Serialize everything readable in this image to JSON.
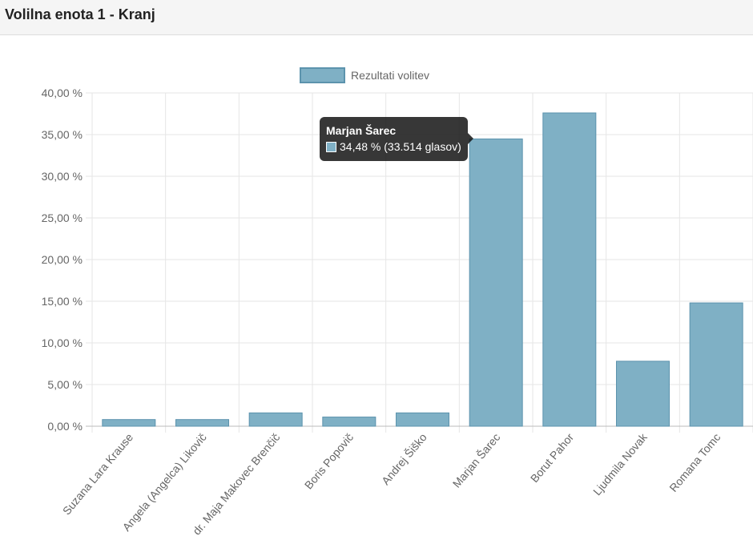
{
  "header": {
    "title": "Volilna enota 1 - Kranj"
  },
  "colors": {
    "bar_fill": "#7fb0c5",
    "bar_border": "#5c93ad",
    "grid": "#e6e6e6",
    "axis_text": "#666666"
  },
  "tooltip": {
    "title": "Marjan Šarec",
    "value": "34,48 % (33.514 glasov)"
  },
  "chart_data": {
    "type": "bar",
    "categories": [
      "Suzana Lara Krause",
      "Angela (Angelca) Likovič",
      "dr. Maja Makovec Brenčič",
      "Boris Popovič",
      "Andrej Šiško",
      "Marjan Šarec",
      "Borut Pahor",
      "Ljudmila Novak",
      "Romana Tomc"
    ],
    "series": [
      {
        "name": "Rezultati volitev",
        "values": [
          0.8,
          0.8,
          1.6,
          1.1,
          1.6,
          34.48,
          37.6,
          7.8,
          14.8
        ]
      }
    ],
    "yticks": [
      "0,00 %",
      "5,00 %",
      "10,00 %",
      "15,00 %",
      "20,00 %",
      "25,00 %",
      "30,00 %",
      "35,00 %",
      "40,00 %"
    ],
    "ylim": [
      0,
      40
    ],
    "ystep": 5,
    "grid": true,
    "legend_position": "top"
  }
}
